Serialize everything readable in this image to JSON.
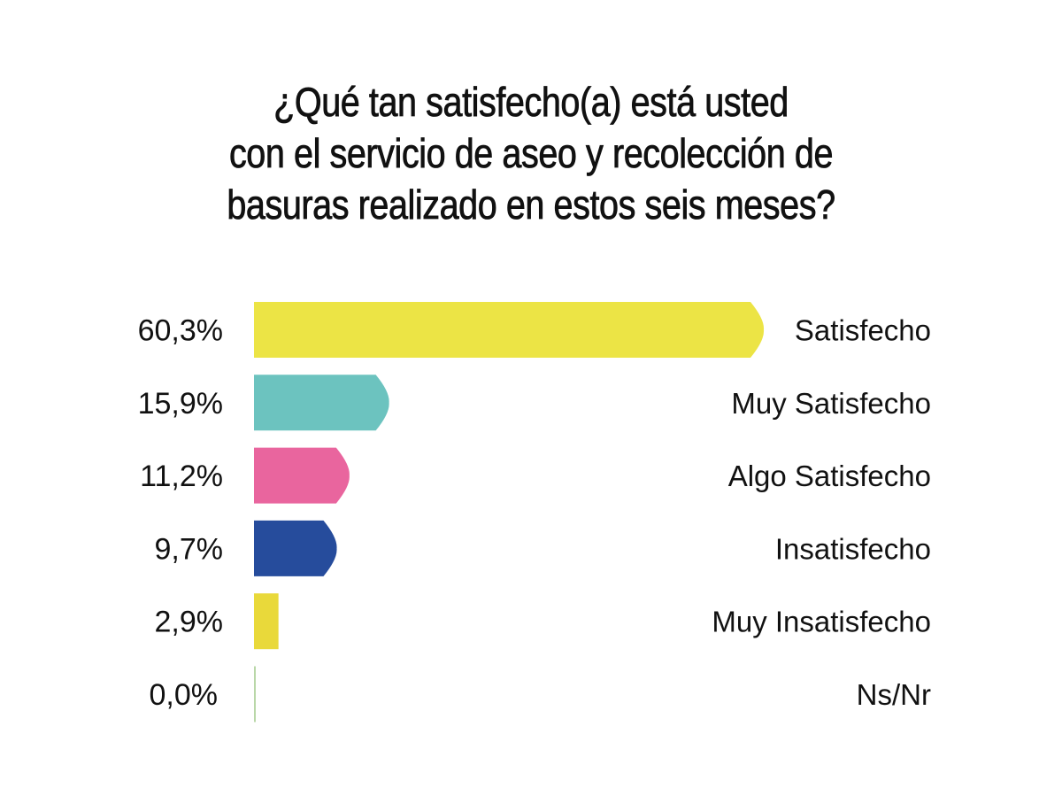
{
  "chart_data": {
    "type": "bar",
    "orientation": "horizontal",
    "title": "¿Qué tan satisfecho(a) está usted con el servicio de aseo y recolección de basuras realizado en estos seis meses?",
    "title_lines": [
      "¿Qué tan satisfecho(a) está usted",
      "con el servicio de aseo y recolección de",
      "basuras realizado en estos seis meses?"
    ],
    "categories": [
      "Satisfecho",
      "Muy Satisfecho",
      "Algo Satisfecho",
      "Insatisfecho",
      "Muy Insatisfecho",
      "Ns/Nr"
    ],
    "values": [
      60.3,
      15.9,
      11.2,
      9.7,
      2.9,
      0.0
    ],
    "value_labels": [
      "60,3%",
      "15,9%",
      "11,2%",
      "9,7%",
      "2,9%",
      "0,0%"
    ],
    "colors": [
      "#ECE445",
      "#6CC3BF",
      "#E9659E",
      "#264C9C",
      "#E9D93A",
      "#B9D7A8"
    ],
    "xlabel": "",
    "ylabel": "",
    "xlim": [
      0,
      60.3
    ],
    "unit": "%",
    "grid": false,
    "legend": "none"
  }
}
